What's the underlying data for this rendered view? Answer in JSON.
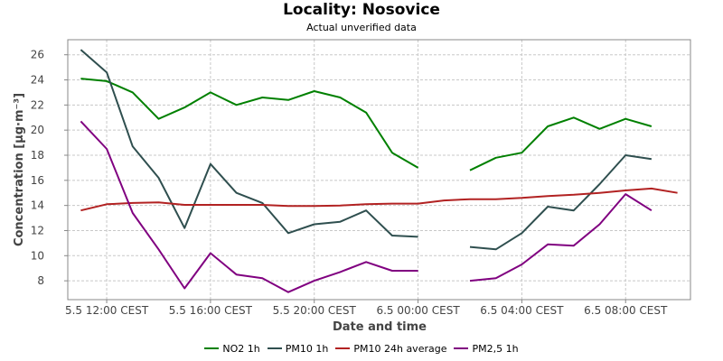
{
  "chart_data": {
    "type": "line",
    "title": "Locality: Nosovice",
    "subtitle": "Actual unverified data",
    "xlabel": "Date and time",
    "ylabel": "Concentration [µg·m⁻³]",
    "x_hours": [
      11,
      12,
      13,
      14,
      15,
      16,
      17,
      18,
      19,
      20,
      21,
      22,
      23,
      24,
      25,
      26,
      27,
      28,
      29,
      30,
      31,
      32,
      33,
      34
    ],
    "x_ticks": [
      {
        "hour": 12,
        "label": "5.5 12:00 CEST"
      },
      {
        "hour": 16,
        "label": "5.5 16:00 CEST"
      },
      {
        "hour": 20,
        "label": "5.5 20:00 CEST"
      },
      {
        "hour": 24,
        "label": "6.5 00:00 CEST"
      },
      {
        "hour": 28,
        "label": "6.5 04:00 CEST"
      },
      {
        "hour": 32,
        "label": "6.5 08:00 CEST"
      }
    ],
    "xlim": [
      10.5,
      34.5
    ],
    "ylim": [
      6.5,
      27.2
    ],
    "y_ticks": [
      8,
      10,
      12,
      14,
      16,
      18,
      20,
      22,
      24,
      26
    ],
    "grid": true,
    "legend_position": "bottom",
    "series": [
      {
        "name": "NO2 1h",
        "color": "#008000",
        "values": [
          24.1,
          23.9,
          23.0,
          20.9,
          21.8,
          23.0,
          22.0,
          22.6,
          22.4,
          23.1,
          22.6,
          21.4,
          18.2,
          17.0,
          null,
          16.8,
          17.8,
          18.2,
          20.3,
          21.0,
          20.1,
          20.9,
          20.3,
          null
        ]
      },
      {
        "name": "PM10 1h",
        "color": "#2f4f4f",
        "values": [
          26.4,
          24.6,
          18.7,
          16.2,
          12.2,
          17.3,
          15.0,
          14.2,
          11.8,
          12.5,
          12.7,
          13.6,
          11.6,
          11.5,
          null,
          10.7,
          10.5,
          11.8,
          13.9,
          13.6,
          15.7,
          18.0,
          17.7,
          null
        ]
      },
      {
        "name": "PM10 24h average",
        "color": "#b22222",
        "values": [
          13.6,
          14.1,
          14.2,
          14.25,
          14.05,
          14.05,
          14.05,
          14.05,
          13.95,
          13.95,
          14.0,
          14.1,
          14.15,
          14.15,
          14.4,
          14.5,
          14.5,
          14.6,
          14.75,
          14.85,
          15.0,
          15.2,
          15.35,
          15.0
        ]
      },
      {
        "name": "PM2,5 1h",
        "color": "#800080",
        "values": [
          20.7,
          18.5,
          13.4,
          10.5,
          7.4,
          10.2,
          8.5,
          8.2,
          7.1,
          8.0,
          8.7,
          9.5,
          8.8,
          8.8,
          null,
          8.0,
          8.2,
          9.3,
          10.9,
          10.8,
          12.5,
          14.9,
          13.6,
          null
        ]
      }
    ]
  }
}
